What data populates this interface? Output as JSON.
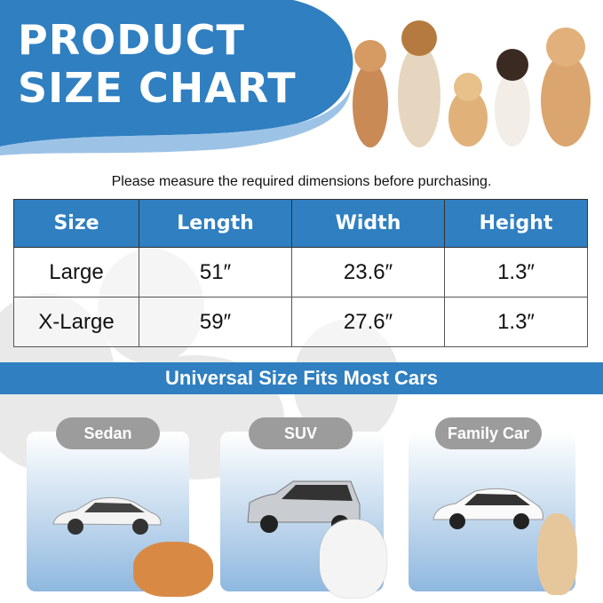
{
  "hero": {
    "title_line1": "PRODUCT",
    "title_line2": "SIZE CHART"
  },
  "note": "Please measure the required dimensions before purchasing.",
  "table": {
    "headers": [
      "Size",
      "Length",
      "Width",
      "Height"
    ],
    "rows": [
      [
        "Large",
        "51″",
        "23.6″",
        "1.3″"
      ],
      [
        "X-Large",
        "59″",
        "27.6″",
        "1.3″"
      ]
    ]
  },
  "banner": "Universal Size Fits Most Cars",
  "cars": [
    {
      "label": "Sedan"
    },
    {
      "label": "SUV"
    },
    {
      "label": "Family Car"
    }
  ],
  "colors": {
    "accent": "#2f7fc1",
    "pill": "#9c9c9c"
  }
}
